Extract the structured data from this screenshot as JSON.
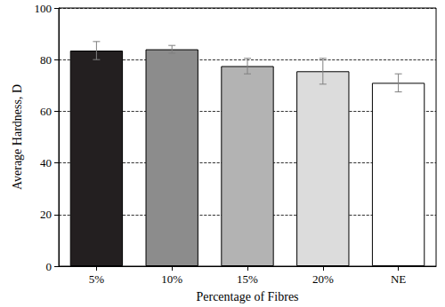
{
  "chart_data": {
    "type": "bar",
    "x_label": "Percentage of Fibres",
    "y_label": "Average Hardness, D",
    "categories": [
      "5%",
      "10%",
      "15%",
      "20%",
      "NE"
    ],
    "values": [
      83.5,
      84,
      77.5,
      75.5,
      71
    ],
    "errors": [
      3.5,
      1.5,
      3,
      5,
      3.5
    ],
    "colors": [
      "#231f20",
      "#8c8c8c",
      "#b3b3b3",
      "#dcdcdc",
      "#ffffff"
    ],
    "ylim": [
      0,
      100
    ],
    "yticks": [
      0,
      20,
      40,
      60,
      80,
      100
    ],
    "grid": true
  }
}
